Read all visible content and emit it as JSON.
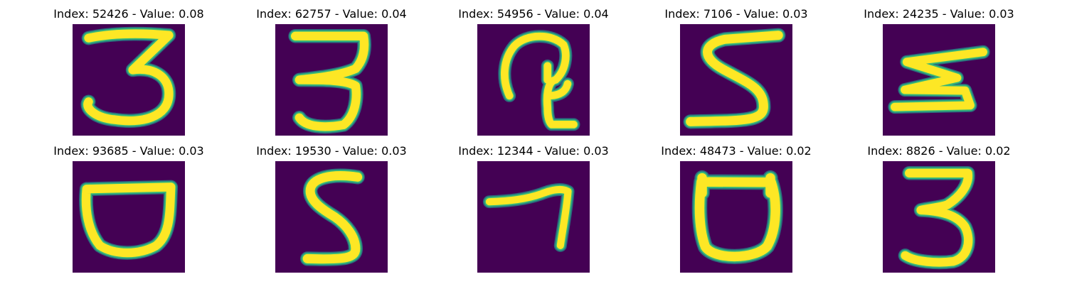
{
  "background_color": "#ffffff",
  "image_bg_color": "#440154",
  "stroke_colors": {
    "core": "#fde725",
    "edge": "#35b779",
    "outer": "#21918c"
  },
  "panels": [
    {
      "title": "Index: 52426 - Value: 0.08",
      "digit": "3"
    },
    {
      "title": "Index: 62757 - Value: 0.04",
      "digit": "3"
    },
    {
      "title": "Index: 54956 - Value: 0.04",
      "digit": "curl-shape"
    },
    {
      "title": "Index: 7106 - Value: 0.03",
      "digit": "5"
    },
    {
      "title": "Index: 24235 - Value: 0.03",
      "digit": "3"
    },
    {
      "title": "Index: 93685 - Value: 0.03",
      "digit": "bowl-shape"
    },
    {
      "title": "Index: 19530 - Value: 0.03",
      "digit": "5"
    },
    {
      "title": "Index: 12344 - Value: 0.03",
      "digit": "7"
    },
    {
      "title": "Index: 48473 - Value: 0.02",
      "digit": "bowl-shape"
    },
    {
      "title": "Index: 8826 - Value: 0.02",
      "digit": "3"
    }
  ]
}
